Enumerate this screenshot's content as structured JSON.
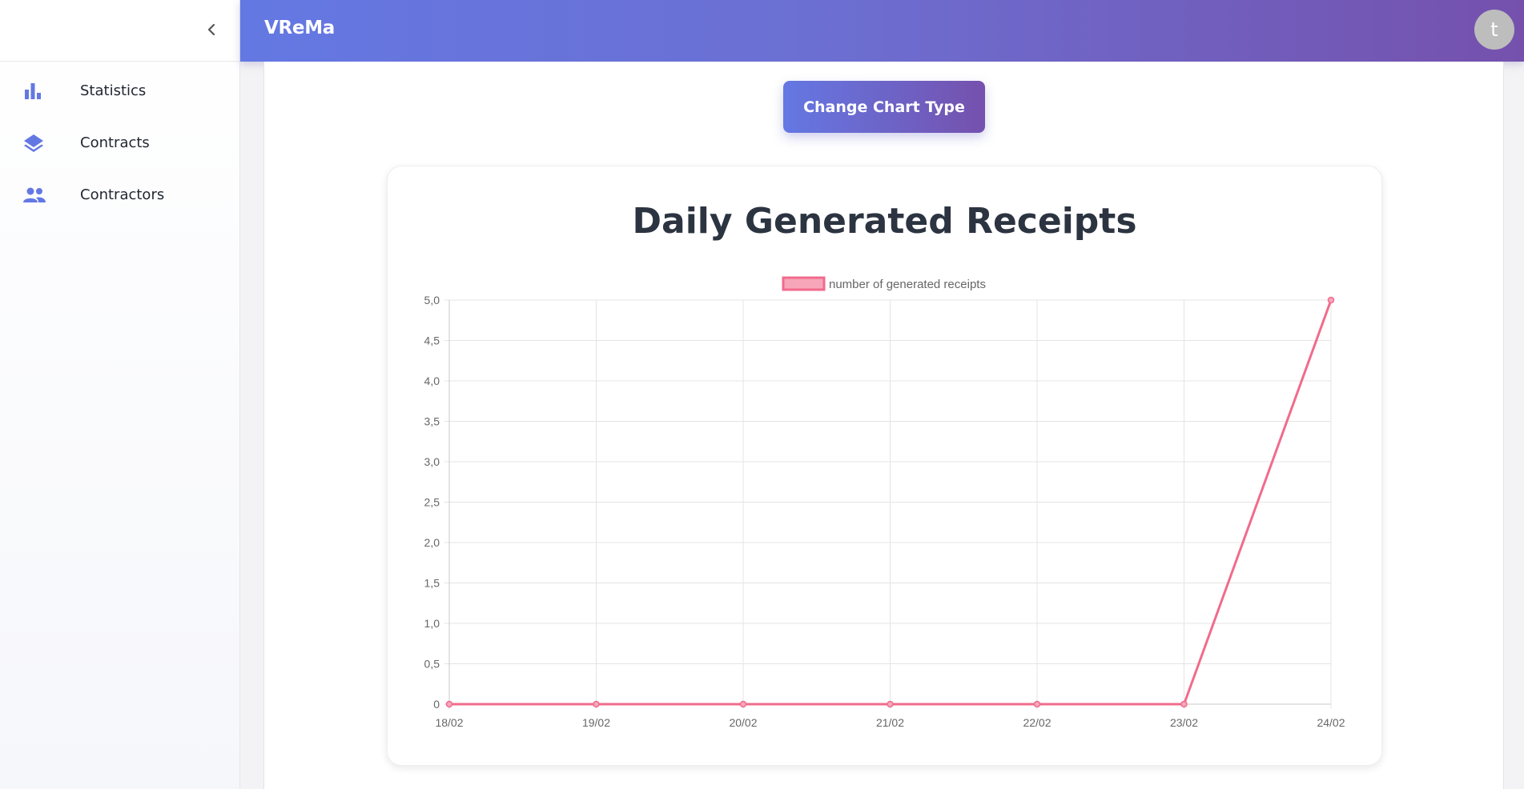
{
  "app": {
    "title": "VReMa",
    "avatar_initial": "t"
  },
  "sidebar": {
    "items": [
      {
        "label": "Statistics",
        "icon": "bar-chart-icon"
      },
      {
        "label": "Contracts",
        "icon": "layers-icon"
      },
      {
        "label": "Contractors",
        "icon": "people-icon"
      }
    ]
  },
  "toolbar": {
    "change_chart_label": "Change Chart Type"
  },
  "colors": {
    "accent": "#6478e3",
    "accent_end": "#7551ad",
    "series": "#f06b8c",
    "series_fill": "#f7a6ba",
    "icon": "#6478e3"
  },
  "chart_data": {
    "type": "line",
    "title": "Daily Generated Receipts",
    "categories": [
      "18/02",
      "19/02",
      "20/02",
      "21/02",
      "22/02",
      "23/02",
      "24/02"
    ],
    "series": [
      {
        "name": "number of generated receipts",
        "values": [
          0,
          0,
          0,
          0,
          0,
          0,
          5
        ]
      }
    ],
    "ylim": [
      0,
      5
    ],
    "yticks": [
      "0",
      "0,5",
      "1,0",
      "1,5",
      "2,0",
      "2,5",
      "3,0",
      "3,5",
      "4,0",
      "4,5",
      "5,0"
    ],
    "grid": true,
    "legend": "top-center"
  }
}
